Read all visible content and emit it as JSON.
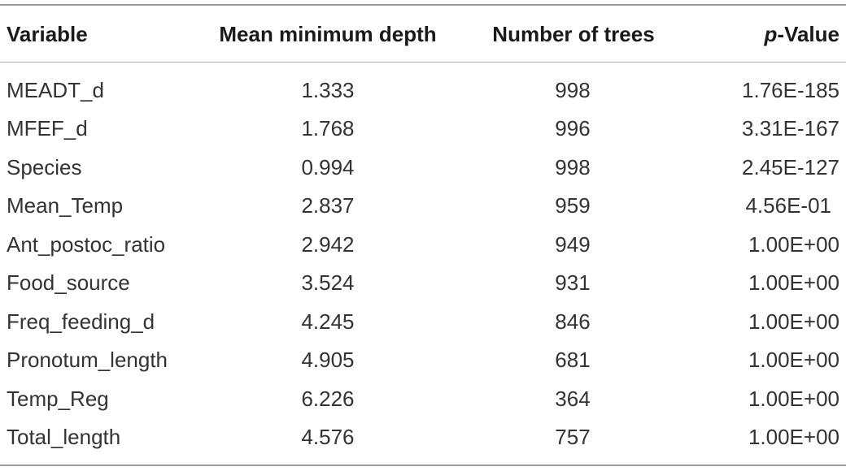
{
  "table": {
    "headers": {
      "variable": "Variable",
      "depth": "Mean minimum depth",
      "trees": "Number of trees",
      "p_prefix": "p",
      "p_suffix": "-Value"
    },
    "rows": [
      {
        "variable": "MEADT_d",
        "depth": "1.333",
        "trees": "998",
        "p": "1.76E-185"
      },
      {
        "variable": "MFEF_d",
        "depth": "1.768",
        "trees": "996",
        "p": "3.31E-167"
      },
      {
        "variable": "Species",
        "depth": "0.994",
        "trees": "998",
        "p": "2.45E-127"
      },
      {
        "variable": "Mean_Temp",
        "depth": "2.837",
        "trees": "959",
        "p": "4.56E-01"
      },
      {
        "variable": "Ant_postoc_ratio",
        "depth": "2.942",
        "trees": "949",
        "p": "1.00E+00"
      },
      {
        "variable": "Food_source",
        "depth": "3.524",
        "trees": "931",
        "p": "1.00E+00"
      },
      {
        "variable": "Freq_feeding_d",
        "depth": "4.245",
        "trees": "846",
        "p": "1.00E+00"
      },
      {
        "variable": "Pronotum_length",
        "depth": "4.905",
        "trees": "681",
        "p": "1.00E+00"
      },
      {
        "variable": "Temp_Reg",
        "depth": "6.226",
        "trees": "364",
        "p": "1.00E+00"
      },
      {
        "variable": "Total_length",
        "depth": "4.576",
        "trees": "757",
        "p": "1.00E+00"
      }
    ]
  }
}
